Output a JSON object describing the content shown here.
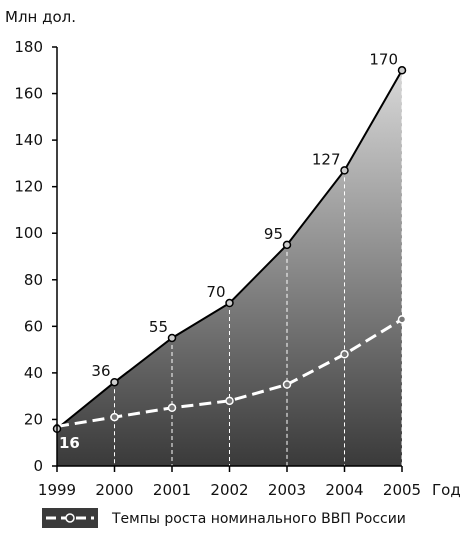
{
  "chart_data": {
    "type": "area",
    "ylabel": "Млн дол.",
    "xlabel": "Год",
    "ylim": [
      0,
      180
    ],
    "y_ticks": [
      0,
      20,
      40,
      60,
      80,
      100,
      120,
      140,
      160,
      180
    ],
    "x": [
      "1999",
      "2000",
      "2001",
      "2002",
      "2003",
      "2004",
      "2005"
    ],
    "series": [
      {
        "values": [
          16,
          36,
          55,
          70,
          95,
          127,
          170
        ],
        "data_labels": [
          "16",
          "36",
          "55",
          "70",
          "95",
          "127",
          "170"
        ],
        "style": "solid area"
      },
      {
        "name": "Темпы роста номинального ВВП России",
        "values": [
          17,
          21,
          25,
          28,
          35,
          48,
          63
        ],
        "style": "dashed line"
      }
    ],
    "grid": false,
    "legend_position": "bottom",
    "colors": {
      "area_top": "#d8d8d8",
      "area_bottom": "#3a3a3a",
      "line": "#000000",
      "dashed_line": "#ffffff"
    }
  }
}
